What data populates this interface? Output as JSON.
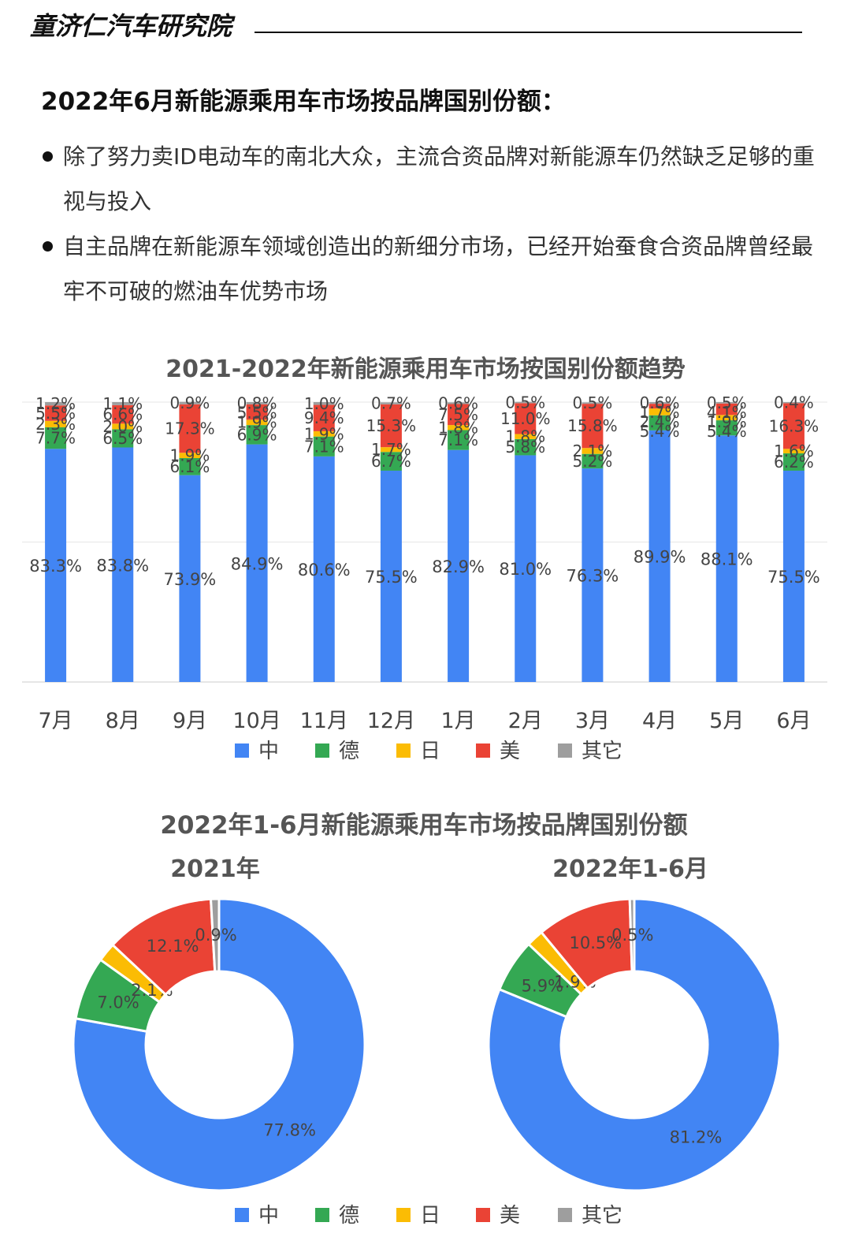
{
  "header": {
    "title": "童济仁汽车研究院"
  },
  "section": {
    "title": "2022年6月新能源乘用车市场按品牌国别份额：",
    "bullets": [
      "除了努力卖ID电动车的南北大众，主流合资品牌对新能源车仍然缺乏足够的重视与投入",
      "自主品牌在新能源车领域创造出的新细分市场，已经开始蚕食合资品牌曾经最牢不可破的燃油车优势市场"
    ]
  },
  "colors": {
    "中": "#4285f4",
    "德": "#34a853",
    "日": "#fbbc04",
    "美": "#ea4335",
    "其它": "#9e9e9e"
  },
  "chart_data": [
    {
      "type": "bar",
      "stacked": true,
      "title": "2021-2022年新能源乘用车市场按国别份额趋势",
      "categories": [
        "7月",
        "8月",
        "9月",
        "10月",
        "11月",
        "12月",
        "1月",
        "2月",
        "3月",
        "4月",
        "5月",
        "6月"
      ],
      "ylim": [
        0,
        100
      ],
      "unit": "%",
      "series": [
        {
          "name": "中",
          "values": [
            83.3,
            83.8,
            73.9,
            84.9,
            80.6,
            75.5,
            82.9,
            81.0,
            76.3,
            89.9,
            88.1,
            75.5
          ]
        },
        {
          "name": "德",
          "values": [
            7.7,
            6.5,
            6.1,
            6.9,
            7.1,
            6.7,
            7.1,
            5.8,
            5.2,
            5.4,
            5.4,
            6.2
          ]
        },
        {
          "name": "日",
          "values": [
            2.3,
            2.0,
            1.9,
            1.9,
            1.9,
            1.7,
            1.8,
            1.8,
            2.1,
            2.4,
            1.9,
            1.6
          ]
        },
        {
          "name": "美",
          "values": [
            5.5,
            6.6,
            17.3,
            5.5,
            9.4,
            15.3,
            7.5,
            11.0,
            15.8,
            1.7,
            4.1,
            16.3
          ]
        },
        {
          "name": "其它",
          "values": [
            1.2,
            1.1,
            0.9,
            0.8,
            1.0,
            0.7,
            0.6,
            0.5,
            0.5,
            0.6,
            0.5,
            0.4
          ]
        }
      ],
      "legend": [
        "中",
        "德",
        "日",
        "美",
        "其它"
      ],
      "legend_position": "bottom",
      "grid": true
    },
    {
      "type": "pie",
      "donut": true,
      "title": "2022年1-6月新能源乘用车市场按品牌国别份额",
      "charts": [
        {
          "subtitle": "2021年",
          "slices": [
            {
              "label": "中",
              "value": 77.8
            },
            {
              "label": "德",
              "value": 7.0
            },
            {
              "label": "日",
              "value": 2.1
            },
            {
              "label": "美",
              "value": 12.1
            },
            {
              "label": "其它",
              "value": 0.9
            }
          ]
        },
        {
          "subtitle": "2022年1-6月",
          "slices": [
            {
              "label": "中",
              "value": 81.2
            },
            {
              "label": "德",
              "value": 5.9
            },
            {
              "label": "日",
              "value": 1.9
            },
            {
              "label": "美",
              "value": 10.5
            },
            {
              "label": "其它",
              "value": 0.5
            }
          ]
        }
      ],
      "legend": [
        "中",
        "德",
        "日",
        "美",
        "其它"
      ],
      "legend_position": "bottom"
    }
  ]
}
